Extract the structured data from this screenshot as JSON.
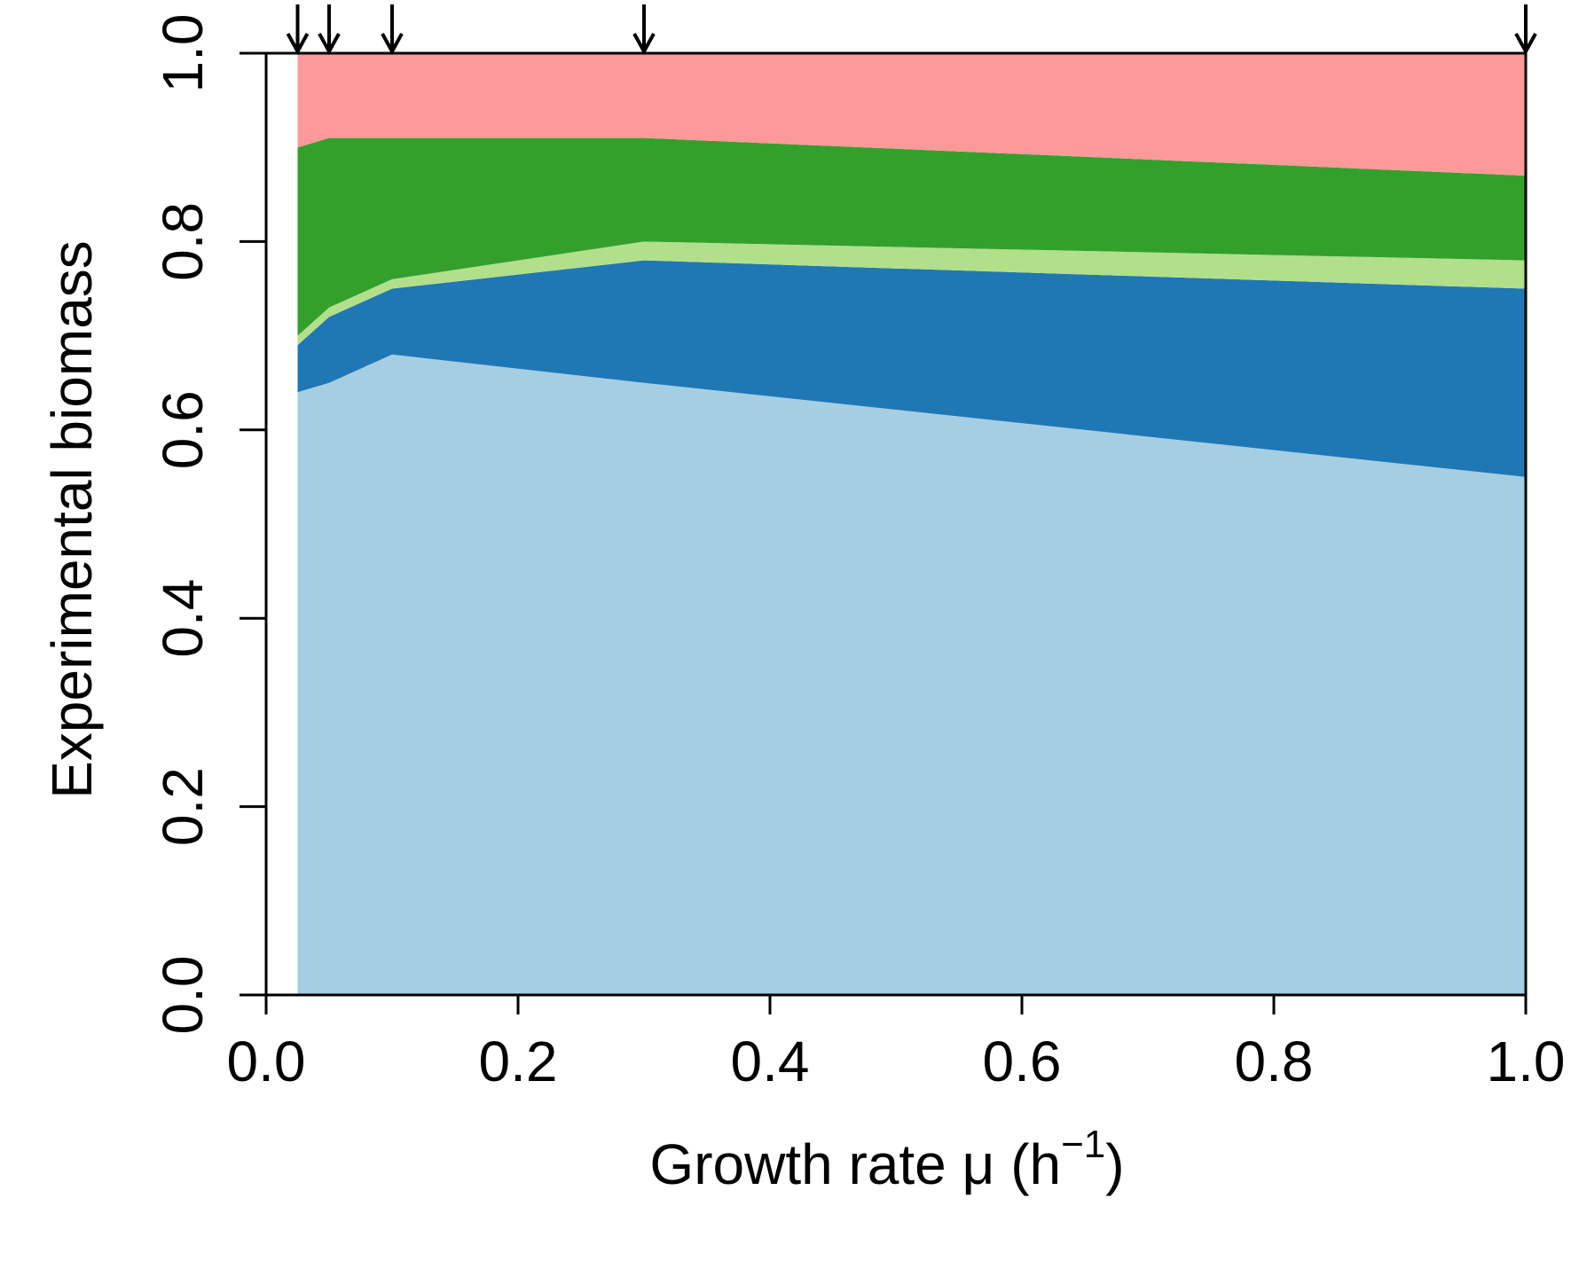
{
  "chart_data": {
    "type": "area",
    "stacked": true,
    "title": "",
    "xlabel": "Growth rate μ",
    "xlabel_unit_open": "(h",
    "xlabel_unit_exp": "−1",
    "xlabel_unit_close": ")",
    "ylabel": "Experimental biomass",
    "xlim": [
      0,
      1
    ],
    "ylim": [
      0,
      1
    ],
    "x_ticks": [
      "0.0",
      "0.2",
      "0.4",
      "0.6",
      "0.8",
      "1.0"
    ],
    "y_ticks": [
      "0.0",
      "0.2",
      "0.4",
      "0.6",
      "0.8",
      "1.0"
    ],
    "x": [
      0.025,
      0.05,
      0.1,
      0.3,
      1.0
    ],
    "arrow_marks_at_x": [
      0.025,
      0.05,
      0.1,
      0.3,
      1.0
    ],
    "grid": false,
    "legend": "none",
    "series_tops": [
      {
        "color": "#a6cee3",
        "top": [
          0.64,
          0.65,
          0.68,
          0.65,
          0.55
        ]
      },
      {
        "color": "#1f78b4",
        "top": [
          0.69,
          0.72,
          0.75,
          0.78,
          0.75
        ]
      },
      {
        "color": "#b2df8a",
        "top": [
          0.7,
          0.73,
          0.76,
          0.8,
          0.78
        ]
      },
      {
        "color": "#33a02c",
        "top": [
          0.9,
          0.91,
          0.91,
          0.91,
          0.87
        ]
      },
      {
        "color": "#fb9a99",
        "top": [
          1.0,
          1.0,
          1.0,
          1.0,
          1.0
        ]
      }
    ]
  }
}
